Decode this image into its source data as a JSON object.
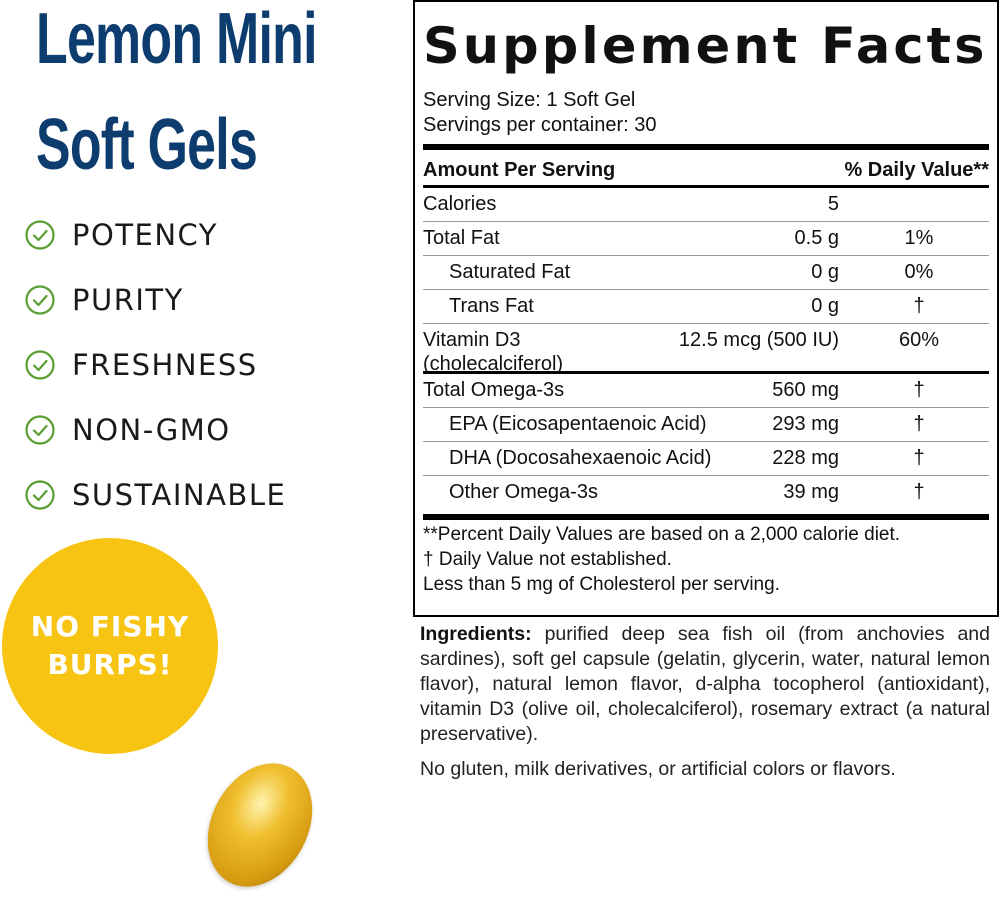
{
  "left": {
    "title_line1": "Lemon Mini",
    "title_line2": "Soft Gels",
    "benefits": [
      "POTENCY",
      "PURITY",
      "FRESHNESS",
      "NON-GMO",
      "SUSTAINABLE"
    ],
    "check_color": "#5a9e32",
    "badge": {
      "line1": "NO FISHY",
      "line2": "BURPS!",
      "color": "#f7c413"
    }
  },
  "facts": {
    "title": "Supplement Facts",
    "serving_size": "Serving Size: 1 Soft Gel",
    "servings_per_container": "Servings per container: 30",
    "header_amount": "Amount Per Serving",
    "header_dv": "% Daily Value**",
    "rows": [
      {
        "name": "Calories",
        "amount": "5",
        "dv": ""
      },
      {
        "name": "Total Fat",
        "amount": "0.5 g",
        "dv": "1%"
      },
      {
        "name": "Saturated Fat",
        "amount": "0 g",
        "dv": "0%"
      },
      {
        "name": "Trans Fat",
        "amount": "0 g",
        "dv": "†"
      },
      {
        "name": "Vitamin D3",
        "name2": "(cholecalciferol)",
        "amount": "12.5 mcg (500 IU)",
        "dv": "60%"
      },
      {
        "name": "Total Omega-3s",
        "amount": "560 mg",
        "dv": "†"
      },
      {
        "name": "EPA (Eicosapentaenoic Acid)",
        "amount": "293 mg",
        "dv": "†"
      },
      {
        "name": "DHA (Docosahexaenoic Acid)",
        "amount": "228 mg",
        "dv": "†"
      },
      {
        "name": "Other Omega-3s",
        "amount": "39 mg",
        "dv": "†"
      }
    ],
    "footnotes": [
      "**Percent Daily Values are based on a 2,000 calorie diet.",
      "†  Daily Value not established.",
      "Less than 5 mg of Cholesterol per serving."
    ]
  },
  "ingredients": {
    "label": "Ingredients:",
    "text": " purified deep sea fish oil (from anchovies and sardines), soft gel capsule (gelatin, glycerin, water, natural lemon flavor), natural lemon flavor, d-alpha tocopherol (antioxidant), vitamin D3 (olive oil, cholecalciferol), rosemary extract (a natural preservative).",
    "free_from": "No gluten, milk derivatives, or artificial colors or flavors."
  }
}
